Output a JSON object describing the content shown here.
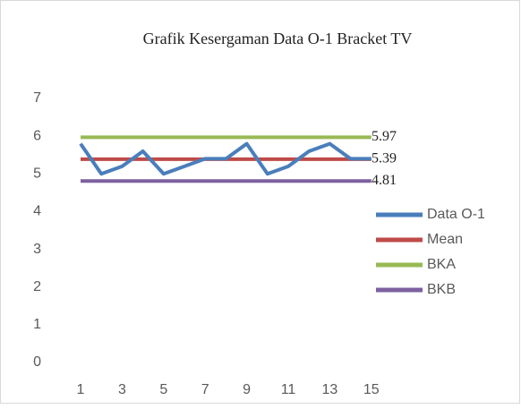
{
  "chart_data": {
    "type": "line",
    "title": "Grafik Kesergaman Data O-1 Bracket TV",
    "categories": [
      1,
      null,
      3,
      null,
      5,
      null,
      7,
      null,
      9,
      null,
      11,
      null,
      13,
      null,
      15
    ],
    "series": [
      {
        "name": "Data O-1",
        "color": "#4a7ebb",
        "values": [
          5.8,
          5.0,
          5.2,
          5.6,
          5.0,
          5.2,
          5.4,
          5.4,
          5.8,
          5.0,
          5.2,
          5.6,
          5.8,
          5.4,
          5.4
        ]
      },
      {
        "name": "Mean",
        "color": "#be4b48",
        "values": [
          5.39,
          5.39,
          5.39,
          5.39,
          5.39,
          5.39,
          5.39,
          5.39,
          5.39,
          5.39,
          5.39,
          5.39,
          5.39,
          5.39,
          5.39
        ]
      },
      {
        "name": "BKA",
        "color": "#98b954",
        "values": [
          5.97,
          5.97,
          5.97,
          5.97,
          5.97,
          5.97,
          5.97,
          5.97,
          5.97,
          5.97,
          5.97,
          5.97,
          5.97,
          5.97,
          5.97
        ]
      },
      {
        "name": "BKB",
        "color": "#7d60a0",
        "values": [
          4.81,
          4.81,
          4.81,
          4.81,
          4.81,
          4.81,
          4.81,
          4.81,
          4.81,
          4.81,
          4.81,
          4.81,
          4.81,
          4.81,
          4.81
        ]
      }
    ],
    "labeled_series": [
      2,
      1,
      3
    ],
    "ylim": [
      0,
      7
    ],
    "yticks": [
      0,
      1,
      2,
      3,
      4,
      5,
      6,
      7
    ],
    "grid": false,
    "legend": "right"
  }
}
